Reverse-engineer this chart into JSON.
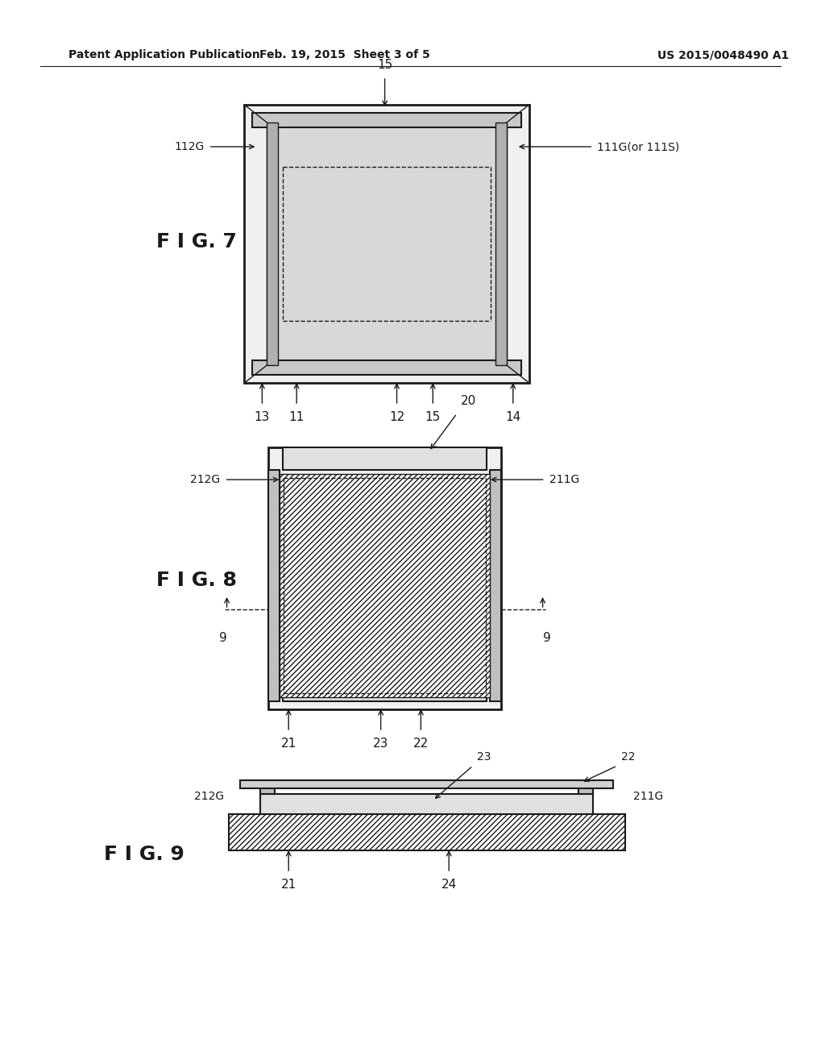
{
  "bg_color": "#ffffff",
  "header_left": "Patent Application Publication",
  "header_center": "Feb. 19, 2015  Sheet 3 of 5",
  "header_right": "US 2015/0048490 A1",
  "fig7_label": "F I G. 7",
  "fig8_label": "F I G. 8",
  "fig9_label": "F I G. 9"
}
